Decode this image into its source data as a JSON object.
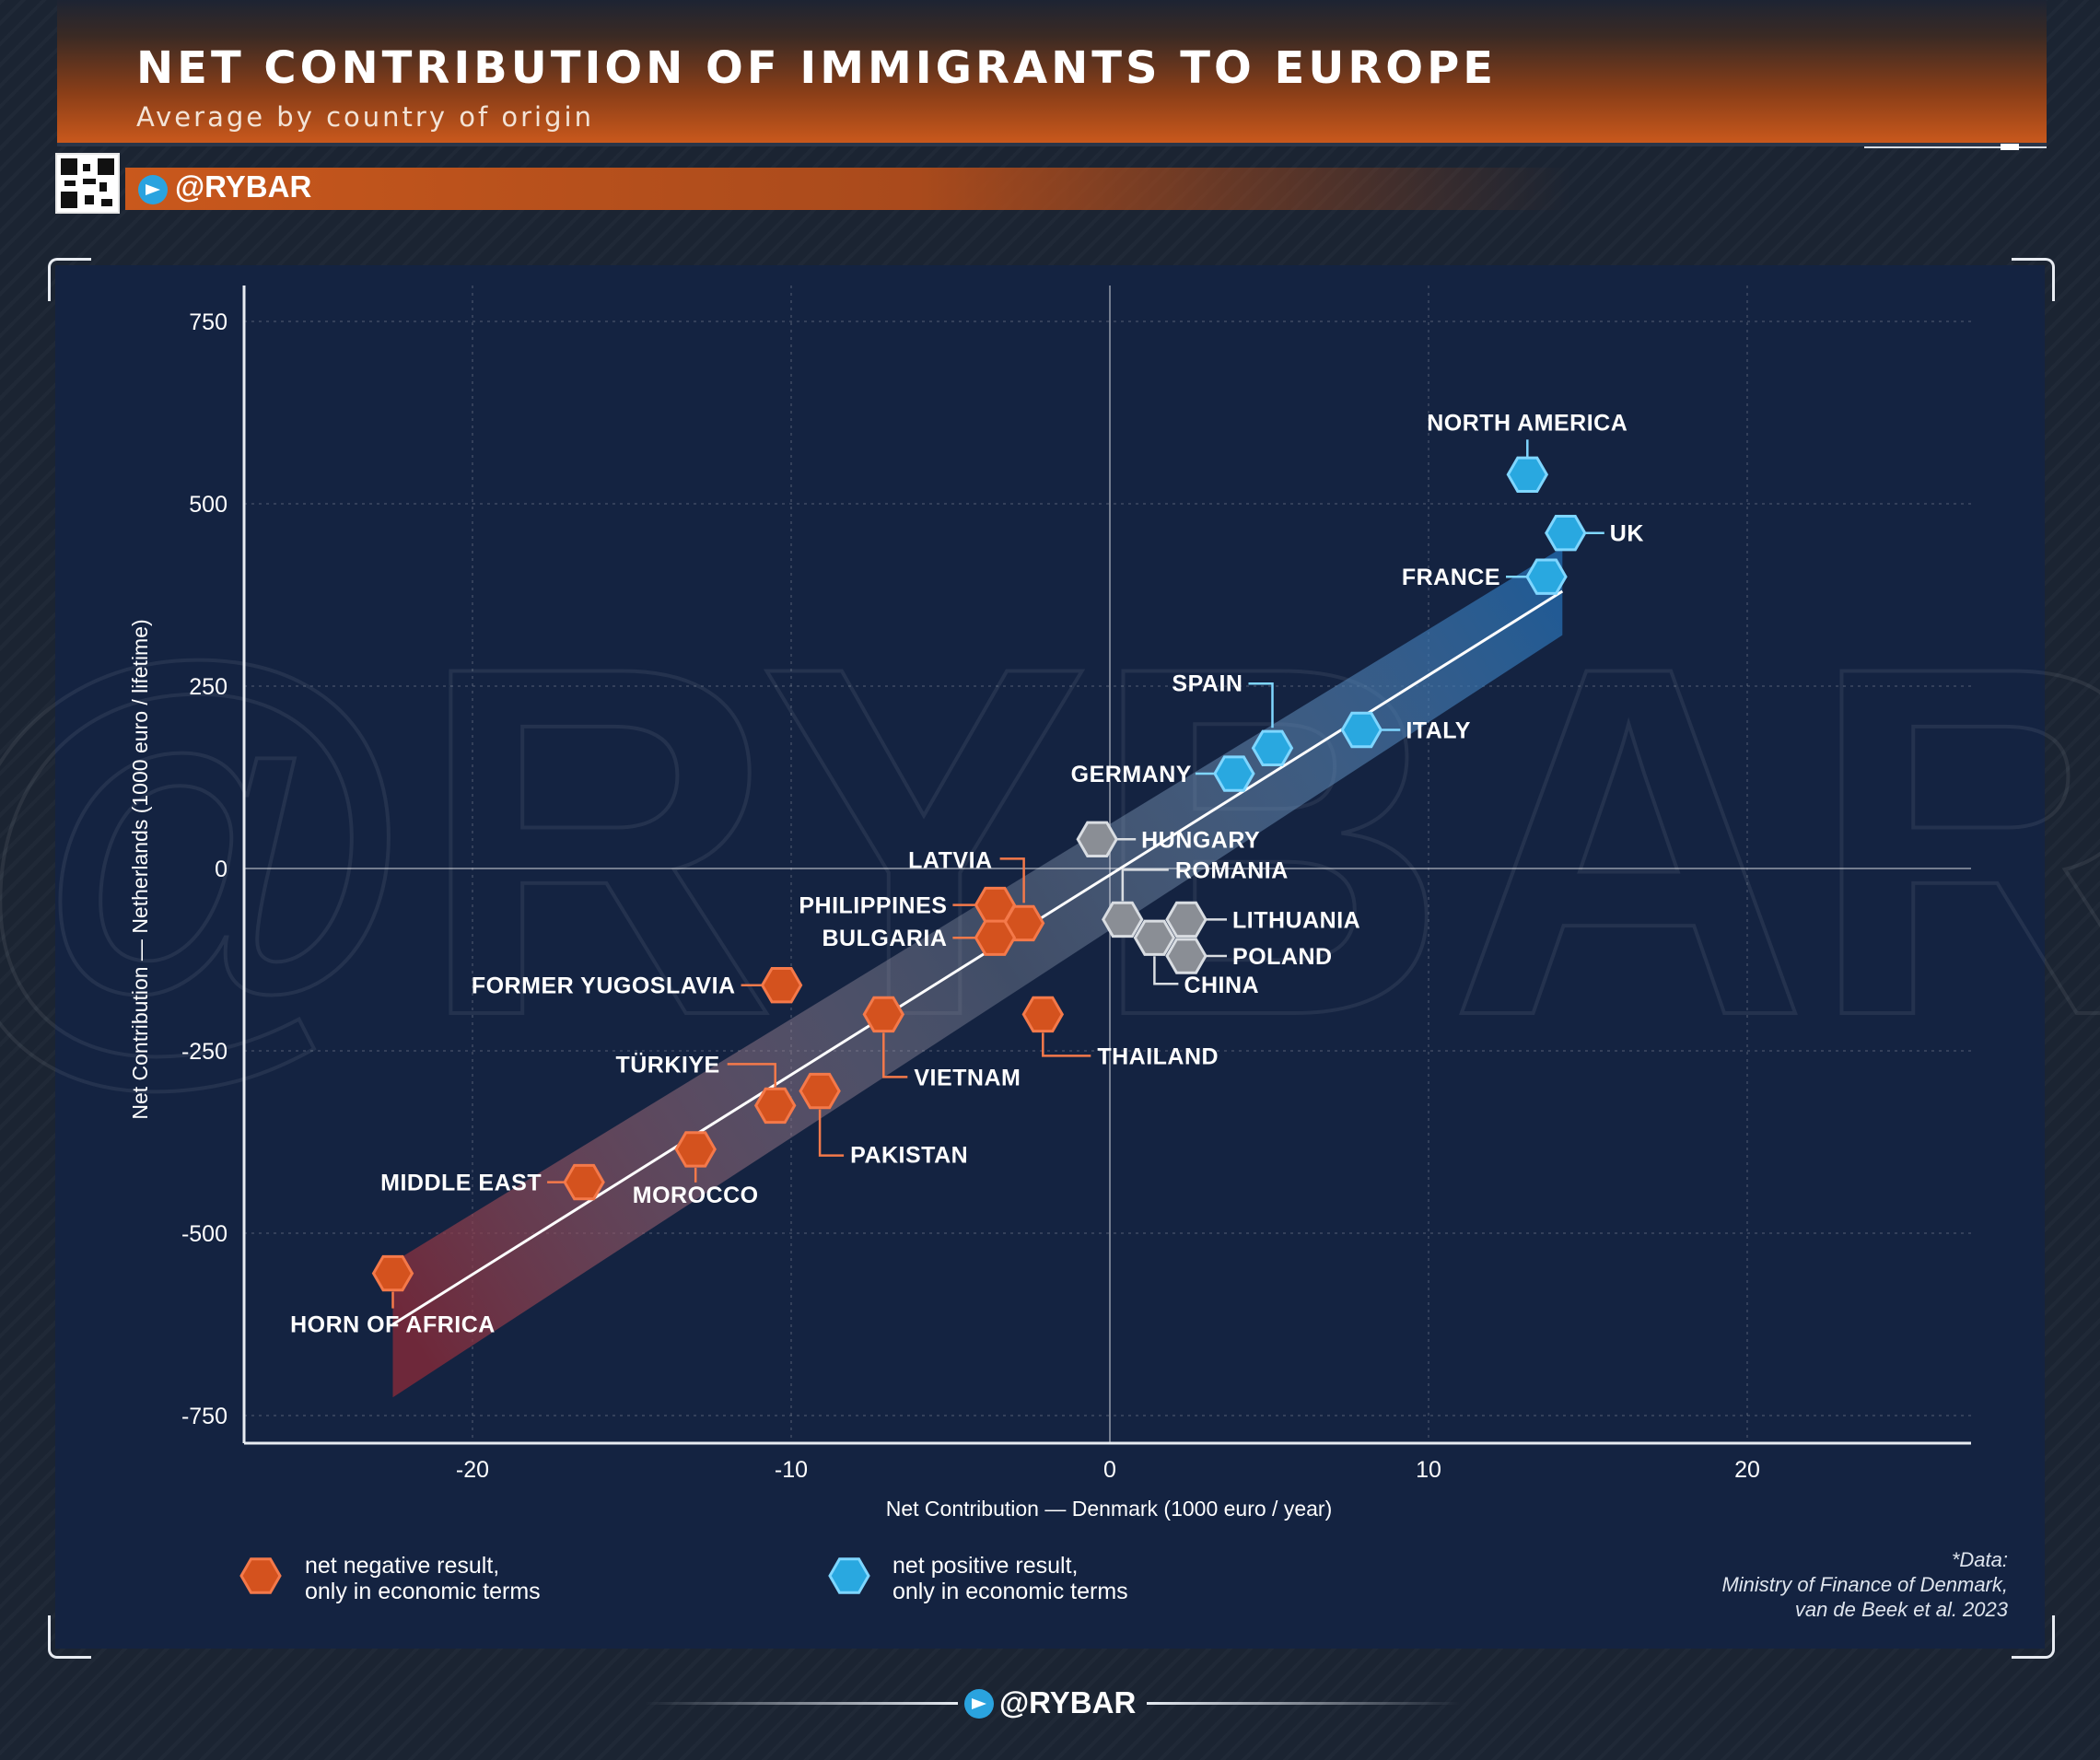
{
  "header": {
    "title": "NET CONTRIBUTION OF IMMIGRANTS TO EUROPE",
    "subtitle": "Average by country of origin",
    "brand_handle": "@RYBAR"
  },
  "watermark": "@RYBAR",
  "colors": {
    "negative": "#d4521e",
    "positive": "#29a8e0",
    "neutral": "#8a8e95",
    "panel_bg": "#142341",
    "header_accent": "#c9581c"
  },
  "legend": {
    "negative_line1": "net negative result,",
    "negative_line2": "only in economic terms",
    "positive_line1": "net positive result,",
    "positive_line2": "only in economic terms"
  },
  "source": {
    "line1": "*Data:",
    "line2": "Ministry of Finance of Denmark,",
    "line3": "van de Beek et al. 2023"
  },
  "footer": {
    "handle": "@RYBAR"
  },
  "chart_data": {
    "type": "scatter",
    "title": "NET CONTRIBUTION OF IMMIGRANTS TO EUROPE",
    "subtitle": "Average by country of origin",
    "xlabel": "Net Contribution — Denmark (1000 euro / year)",
    "ylabel": "Net Contribution — Netherlands (1000 euro / lifetime)",
    "xlim": [
      -27,
      27
    ],
    "ylim": [
      -840,
      800
    ],
    "xticks": [
      -20,
      -10,
      0,
      10,
      20
    ],
    "yticks": [
      750,
      500,
      250,
      0,
      -250,
      -500,
      -750
    ],
    "grid": true,
    "trend_line": {
      "x": [
        -22.5,
        14.2
      ],
      "y": [
        -625,
        380
      ]
    },
    "confidence_band": {
      "x": [
        -22.5,
        14.2
      ],
      "y_upper": [
        -540,
        440
      ],
      "y_lower": [
        -725,
        320
      ]
    },
    "points": [
      {
        "name": "NORTH AMERICA",
        "x": 13.1,
        "y": 540,
        "group": "positive"
      },
      {
        "name": "UK",
        "x": 14.3,
        "y": 460,
        "group": "positive"
      },
      {
        "name": "FRANCE",
        "x": 13.7,
        "y": 400,
        "group": "positive"
      },
      {
        "name": "SPAIN",
        "x": 5.1,
        "y": 165,
        "group": "positive"
      },
      {
        "name": "ITALY",
        "x": 7.9,
        "y": 190,
        "group": "positive"
      },
      {
        "name": "GERMANY",
        "x": 3.9,
        "y": 130,
        "group": "positive"
      },
      {
        "name": "HUNGARY",
        "x": -0.4,
        "y": 40,
        "group": "neutral"
      },
      {
        "name": "ROMANIA",
        "x": 0.4,
        "y": -70,
        "group": "neutral"
      },
      {
        "name": "LITHUANIA",
        "x": 2.4,
        "y": -70,
        "group": "neutral"
      },
      {
        "name": "POLAND",
        "x": 2.4,
        "y": -120,
        "group": "neutral"
      },
      {
        "name": "CHINA",
        "x": 1.4,
        "y": -95,
        "group": "neutral"
      },
      {
        "name": "LATVIA",
        "x": -2.7,
        "y": -75,
        "group": "negative"
      },
      {
        "name": "PHILIPPINES",
        "x": -3.6,
        "y": -50,
        "group": "negative"
      },
      {
        "name": "BULGARIA",
        "x": -3.6,
        "y": -95,
        "group": "negative"
      },
      {
        "name": "FORMER YUGOSLAVIA",
        "x": -10.3,
        "y": -160,
        "group": "negative"
      },
      {
        "name": "VIETNAM",
        "x": -7.1,
        "y": -200,
        "group": "negative"
      },
      {
        "name": "THAILAND",
        "x": -2.1,
        "y": -200,
        "group": "negative"
      },
      {
        "name": "TÜRKIYE",
        "x": -10.5,
        "y": -325,
        "group": "negative"
      },
      {
        "name": "PAKISTAN",
        "x": -9.1,
        "y": -305,
        "group": "negative"
      },
      {
        "name": "MIDDLE EAST",
        "x": -16.5,
        "y": -430,
        "group": "negative"
      },
      {
        "name": "MOROCCO",
        "x": -13,
        "y": -385,
        "group": "negative"
      },
      {
        "name": "HORN OF AFRICA",
        "x": -22.5,
        "y": -555,
        "group": "negative"
      }
    ]
  }
}
